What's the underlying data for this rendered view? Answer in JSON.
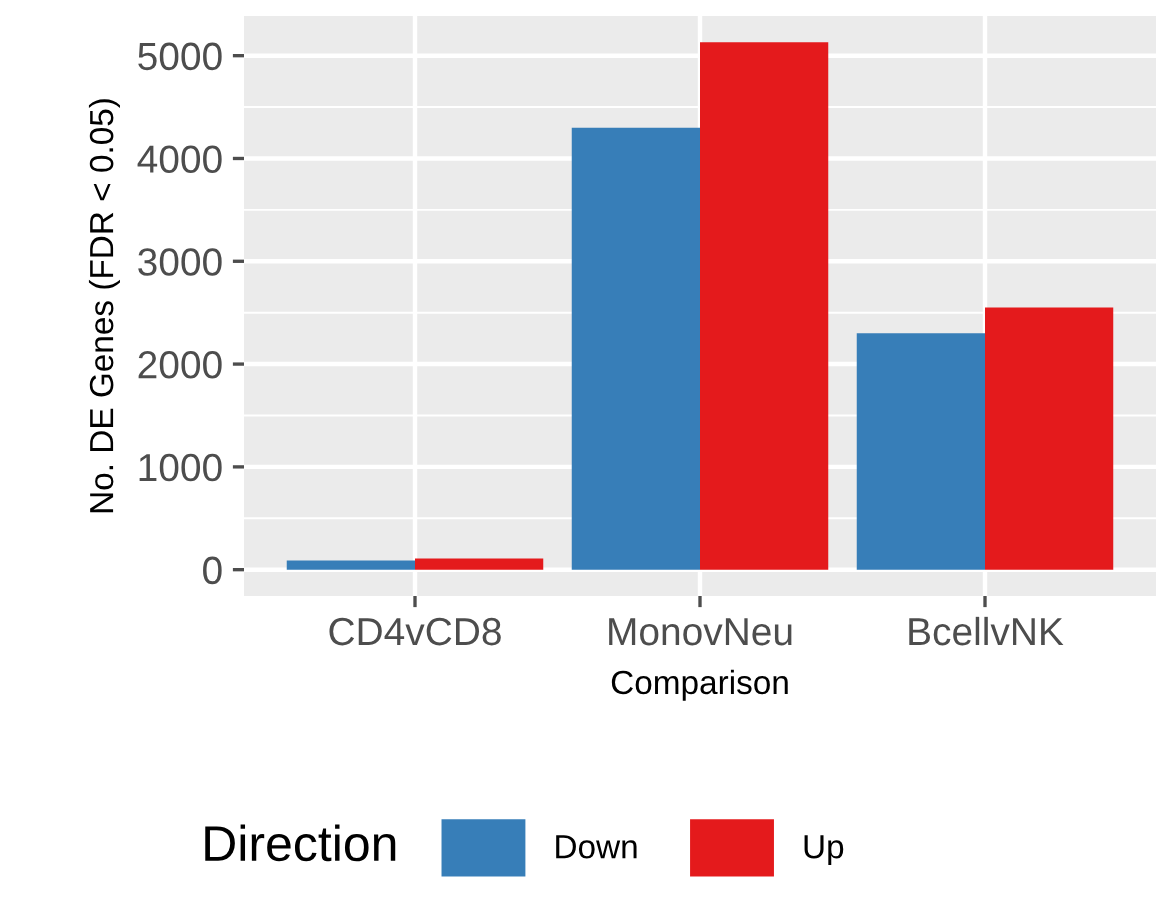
{
  "chart_data": {
    "type": "bar",
    "xlabel": "Comparison",
    "ylabel": "No. DE Genes (FDR < 0.05)",
    "legend_title": "Direction",
    "categories": [
      "CD4vCD8",
      "MonovNeu",
      "BcellvNK"
    ],
    "series": [
      {
        "name": "Down",
        "color": "#377eb8",
        "values": [
          90,
          4300,
          2300
        ]
      },
      {
        "name": "Up",
        "color": "#e41a1c",
        "values": [
          110,
          5130,
          2550
        ]
      }
    ],
    "ylim": [
      -256,
      5386
    ],
    "yticks": [
      0,
      1000,
      2000,
      3000,
      4000,
      5000
    ],
    "grid": true,
    "legend": "bottom"
  }
}
